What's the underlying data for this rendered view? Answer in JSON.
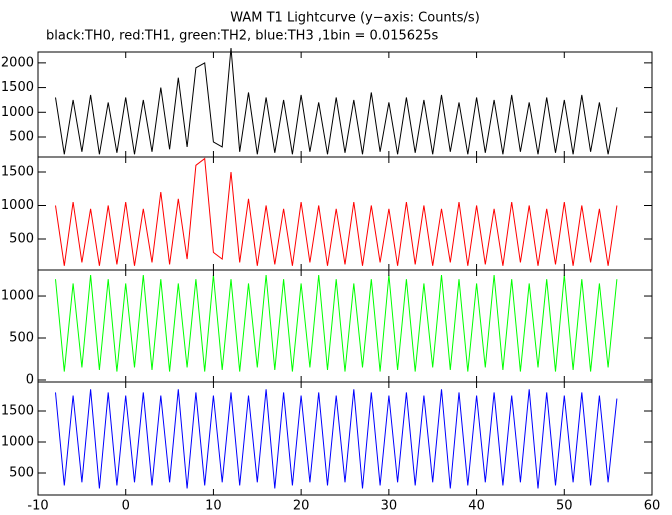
{
  "chart_data": {
    "type": "line",
    "title": "WAM T1 Lightcurve (y−axis: Counts/s)",
    "subtitle": "black:TH0, red:TH1, green:TH2, blue:TH3 ,1bin = 0.015625s",
    "x": [
      -8,
      -7,
      -6,
      -5,
      -4,
      -3,
      -2,
      -1,
      0,
      1,
      2,
      3,
      4,
      5,
      6,
      7,
      8,
      9,
      10,
      11,
      12,
      13,
      14,
      15,
      16,
      17,
      18,
      19,
      20,
      21,
      22,
      23,
      24,
      25,
      26,
      27,
      28,
      29,
      30,
      31,
      32,
      33,
      34,
      35,
      36,
      37,
      38,
      39,
      40,
      41,
      42,
      43,
      44,
      45,
      46,
      47,
      48,
      49,
      50,
      51,
      52,
      53,
      54,
      55,
      56
    ],
    "xlim": [
      -10,
      60
    ],
    "xticks": [
      -10,
      0,
      10,
      20,
      30,
      40,
      50,
      60
    ],
    "panels": [
      {
        "color": "#000000",
        "ylim": [
          95,
          2220
        ],
        "yticks": [
          500,
          1000,
          1500,
          2000
        ],
        "values": [
          1300,
          150,
          1250,
          200,
          1350,
          150,
          1200,
          180,
          1300,
          150,
          1250,
          200,
          1500,
          250,
          1700,
          300,
          1900,
          2000,
          400,
          300,
          2300,
          200,
          1400,
          150,
          1300,
          180,
          1250,
          150,
          1350,
          200,
          1200,
          150,
          1300,
          180,
          1250,
          150,
          1400,
          200,
          1200,
          150,
          1300,
          180,
          1250,
          150,
          1350,
          200,
          1200,
          150,
          1300,
          180,
          1250,
          150,
          1350,
          200,
          1200,
          150,
          1300,
          180,
          1250,
          150,
          1350,
          200,
          1200,
          150,
          1100
        ]
      },
      {
        "color": "#ff0000",
        "ylim": [
          37,
          1724
        ],
        "yticks": [
          500,
          1000,
          1500
        ],
        "values": [
          1000,
          100,
          1050,
          150,
          950,
          100,
          1000,
          120,
          1050,
          100,
          950,
          150,
          1200,
          120,
          1100,
          200,
          1600,
          1700,
          300,
          200,
          1500,
          150,
          1100,
          100,
          1000,
          120,
          950,
          100,
          1050,
          150,
          1000,
          100,
          950,
          120,
          1050,
          100,
          1000,
          150,
          950,
          100,
          1050,
          120,
          1000,
          100,
          950,
          150,
          1050,
          100,
          1000,
          120,
          950,
          100,
          1050,
          150,
          1000,
          100,
          950,
          120,
          1050,
          100,
          1000,
          150,
          950,
          100,
          1000
        ]
      },
      {
        "color": "#00ff00",
        "ylim": [
          -24,
          1310
        ],
        "yticks": [
          0,
          500,
          1000
        ],
        "values": [
          1200,
          100,
          1150,
          150,
          1250,
          120,
          1200,
          100,
          1150,
          150,
          1250,
          120,
          1200,
          100,
          1150,
          150,
          1200,
          100,
          1250,
          120,
          1200,
          100,
          1150,
          150,
          1250,
          120,
          1200,
          100,
          1150,
          150,
          1250,
          120,
          1200,
          100,
          1150,
          150,
          1200,
          100,
          1250,
          120,
          1200,
          100,
          1150,
          150,
          1250,
          120,
          1200,
          100,
          1150,
          150,
          1250,
          120,
          1200,
          100,
          1150,
          150,
          1200,
          100,
          1250,
          120,
          1200,
          100,
          1150,
          150,
          1200
        ]
      },
      {
        "color": "#0000ff",
        "ylim": [
          145,
          1968
        ],
        "yticks": [
          500,
          1000,
          1500
        ],
        "values": [
          1800,
          300,
          1750,
          350,
          1850,
          250,
          1800,
          300,
          1750,
          350,
          1800,
          300,
          1750,
          350,
          1850,
          250,
          1800,
          300,
          1750,
          350,
          1800,
          300,
          1750,
          350,
          1850,
          250,
          1800,
          300,
          1750,
          350,
          1800,
          300,
          1750,
          350,
          1850,
          250,
          1800,
          300,
          1750,
          350,
          1800,
          300,
          1750,
          350,
          1850,
          250,
          1800,
          300,
          1750,
          350,
          1800,
          300,
          1750,
          350,
          1850,
          250,
          1800,
          300,
          1750,
          350,
          1800,
          300,
          1750,
          350,
          1700
        ]
      }
    ]
  }
}
